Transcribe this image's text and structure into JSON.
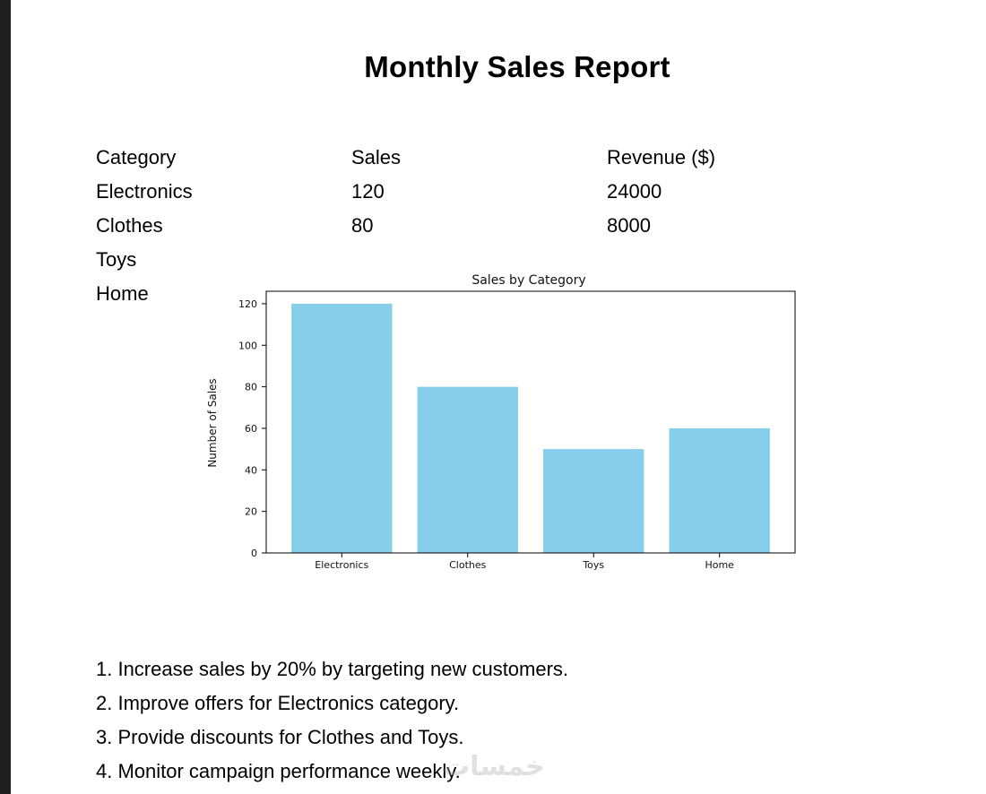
{
  "report": {
    "title": "Monthly Sales Report"
  },
  "table": {
    "headers": [
      "Category",
      "Sales",
      "Revenue ($)"
    ],
    "rows": [
      [
        "Electronics",
        "120",
        "24000"
      ],
      [
        "Clothes",
        "80",
        "8000"
      ],
      [
        "Toys",
        "",
        ""
      ],
      [
        "Home",
        "",
        ""
      ]
    ]
  },
  "chart_data": {
    "type": "bar",
    "title": "Sales by Category",
    "xlabel": "",
    "ylabel": "Number of Sales",
    "categories": [
      "Electronics",
      "Clothes",
      "Toys",
      "Home"
    ],
    "values": [
      120,
      80,
      50,
      60
    ],
    "ylim": [
      0,
      126
    ],
    "yticks": [
      0,
      20,
      40,
      60,
      80,
      100,
      120
    ],
    "bar_color": "#87ceeb",
    "grid": false,
    "legend": "none"
  },
  "recommendations": [
    "1. Increase sales by 20% by targeting new customers.",
    "2. Improve offers for Electronics category.",
    "3. Provide discounts for Clothes and Toys.",
    "4. Monitor campaign performance weekly."
  ],
  "watermark": {
    "text": "خمسات"
  }
}
